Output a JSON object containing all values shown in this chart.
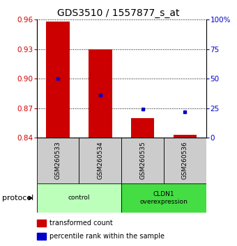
{
  "title": "GDS3510 / 1557877_s_at",
  "samples": [
    "GSM260533",
    "GSM260534",
    "GSM260535",
    "GSM260536"
  ],
  "bar_bottoms": [
    0.84,
    0.84,
    0.84,
    0.84
  ],
  "bar_tops": [
    0.958,
    0.93,
    0.86,
    0.843
  ],
  "blue_dot_values": [
    0.9,
    0.883,
    0.869,
    0.866
  ],
  "ylim": [
    0.84,
    0.96
  ],
  "yticks_left": [
    0.84,
    0.87,
    0.9,
    0.93,
    0.96
  ],
  "yticks_right": [
    0,
    25,
    50,
    75,
    100
  ],
  "yticks_right_labels": [
    "0",
    "25",
    "50",
    "75",
    "100%"
  ],
  "bar_color": "#cc0000",
  "dot_color": "#0000cc",
  "bar_width": 0.55,
  "group_control_color": "#bbffbb",
  "group_cldn1_color": "#44dd44",
  "protocol_label": "protocol",
  "legend_items": [
    {
      "color": "#cc0000",
      "label": "transformed count"
    },
    {
      "color": "#0000cc",
      "label": "percentile rank within the sample"
    }
  ],
  "tick_label_color_left": "#cc0000",
  "tick_label_color_right": "#0000cc",
  "sample_box_color": "#cccccc",
  "title_fontsize": 10,
  "tick_fontsize": 7.5,
  "sample_fontsize": 6.5,
  "legend_fontsize": 7,
  "proto_fontsize": 8
}
